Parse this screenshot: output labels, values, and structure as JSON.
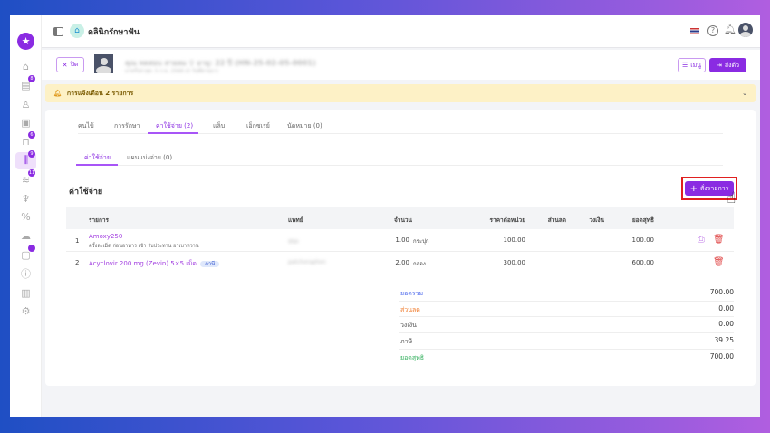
{
  "app": {
    "clinic_name": "คลินิกรักษาฟัน",
    "language_flag": "th-flag"
  },
  "sidebar": {
    "items": [
      {
        "icon": "home-icon",
        "glyph": "⌂"
      },
      {
        "icon": "calendar-icon",
        "glyph": "▤",
        "badge": "8"
      },
      {
        "icon": "user-icon",
        "glyph": "♙"
      },
      {
        "icon": "id-card-icon",
        "glyph": "▣"
      },
      {
        "icon": "bed-icon",
        "glyph": "⊓",
        "badge": "6"
      },
      {
        "icon": "finance-icon",
        "glyph": "⫼",
        "badge": "9",
        "active": true
      },
      {
        "icon": "hand-money-icon",
        "glyph": "≋",
        "badge": "11"
      },
      {
        "icon": "tooth-icon",
        "glyph": "♆"
      },
      {
        "icon": "percent-icon",
        "glyph": "%"
      },
      {
        "icon": "cloud-icon",
        "glyph": "☁"
      },
      {
        "icon": "box-icon",
        "glyph": "▢",
        "badge": ""
      },
      {
        "icon": "info-icon",
        "glyph": "ⓘ"
      },
      {
        "icon": "chart-icon",
        "glyph": "▥"
      },
      {
        "icon": "settings-icon",
        "glyph": "⚙"
      }
    ]
  },
  "patient": {
    "name": "คุณ ทดสอบ สายลม ♀ อายุ: 22 ปี (HN-25-02-05-0001)",
    "sub": "มาครั้งล่าสุด: 5 ก.พ. 2568 (0 วันที่ผ่านมา)",
    "close_label": "ปิด",
    "menu_label": "เมนู",
    "refer_label": "ส่งตัว"
  },
  "alert": {
    "text": "การแจ้งเตือน 2 รายการ"
  },
  "tabs": [
    "คนไข้",
    "การรักษา",
    "ค่าใช้จ่าย (2)",
    "แล็บ",
    "เอ็กซเรย์",
    "นัดหมาย (0)"
  ],
  "subtabs": [
    "ค่าใช้จ่าย",
    "แผนแบ่งจ่าย (0)"
  ],
  "section": {
    "title": "ค่าใช้จ่าย",
    "add_label": "สั่งรายการ"
  },
  "table": {
    "headers": [
      "รายการ",
      "แพทย์",
      "จำนวน",
      "ราคาต่อหน่วย",
      "ส่วนลด",
      "วงเงิน",
      "ยอดสุทธิ"
    ],
    "rows": [
      {
        "no": "1",
        "name": "Amoxy250",
        "note": "ครั้งละเม็ด ก่อนอาหาร เช้า รับประทาน ยาเบาหวาน",
        "doctor": "สุขุม",
        "qty": "1.00",
        "unit": "กระปุก",
        "price": "100.00",
        "net": "100.00"
      },
      {
        "no": "2",
        "name": "Acyclovir 200 mg (Zevin) 5×5 เม็ด",
        "badge": "ภาษี",
        "doctor": "patchoraphon",
        "qty": "2.00",
        "unit": "กล่อง",
        "price": "300.00",
        "net": "600.00"
      }
    ]
  },
  "totals": [
    {
      "label": "ยอดรวม",
      "value": "700.00",
      "color": "#4f6bed"
    },
    {
      "label": "ส่วนลด",
      "value": "0.00",
      "color": "#f07a2a"
    },
    {
      "label": "วงเงิน",
      "value": "0.00",
      "color": "#555555"
    },
    {
      "label": "ภาษี",
      "value": "39.25",
      "color": "#555555"
    },
    {
      "label": "ยอดสุทธิ",
      "value": "700.00",
      "color": "#2fae5a"
    }
  ],
  "colors": {
    "accent": "#8a2be2",
    "danger": "#e04848",
    "highlight_box": "#e02020"
  }
}
